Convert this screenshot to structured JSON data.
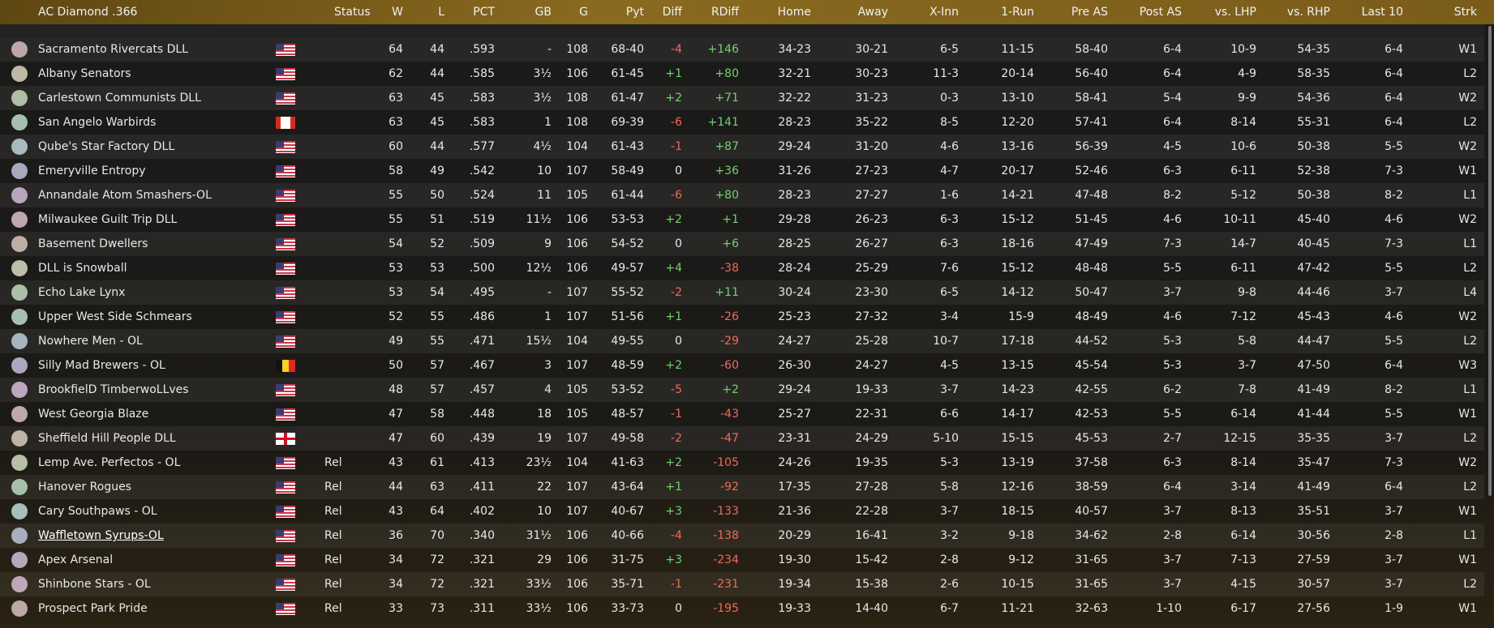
{
  "table": {
    "columns": [
      "AC Diamond .366",
      "Status",
      "W",
      "L",
      "PCT",
      "GB",
      "G",
      "Pyt",
      "Diff",
      "RDiff",
      "Home",
      "Away",
      "X-Inn",
      "1-Run",
      "Pre AS",
      "Post AS",
      "vs. LHP",
      "vs. RHP",
      "Last 10",
      "Strk"
    ],
    "rows": [
      {
        "team": "Sacramento Rivercats DLL",
        "flag": "us",
        "cells": [
          64,
          44,
          ".593",
          "-",
          108,
          "68-40",
          "-4",
          "+146",
          "34-23",
          "30-21",
          "6-5",
          "11-15",
          "58-40",
          "6-4",
          "10-9",
          "54-35",
          "6-4",
          "W1"
        ]
      },
      {
        "team": "Albany Senators",
        "flag": "us",
        "cells": [
          62,
          44,
          ".585",
          "3½",
          106,
          "61-45",
          "+1",
          "+80",
          "32-21",
          "30-23",
          "11-3",
          "20-14",
          "56-40",
          "6-4",
          "4-9",
          "58-35",
          "6-4",
          "L2"
        ]
      },
      {
        "team": "Carlestown Communists DLL",
        "flag": "us",
        "cells": [
          63,
          45,
          ".583",
          "3½",
          108,
          "61-47",
          "+2",
          "+71",
          "32-22",
          "31-23",
          "0-3",
          "13-10",
          "58-41",
          "5-4",
          "9-9",
          "54-36",
          "6-4",
          "W2"
        ]
      },
      {
        "team": "San Angelo Warbirds",
        "flag": "ca",
        "cells": [
          63,
          45,
          ".583",
          "1",
          108,
          "69-39",
          "-6",
          "+141",
          "28-23",
          "35-22",
          "8-5",
          "12-20",
          "57-41",
          "6-4",
          "8-14",
          "55-31",
          "6-4",
          "L2"
        ]
      },
      {
        "team": "Qube's Star Factory DLL",
        "flag": "us",
        "cells": [
          60,
          44,
          ".577",
          "4½",
          104,
          "61-43",
          "-1",
          "+87",
          "29-24",
          "31-20",
          "4-6",
          "13-16",
          "56-39",
          "4-5",
          "10-6",
          "50-38",
          "5-5",
          "W2"
        ]
      },
      {
        "team": "Emeryville Entropy",
        "flag": "us",
        "cells": [
          58,
          49,
          ".542",
          "10",
          107,
          "58-49",
          "0",
          "+36",
          "31-26",
          "27-23",
          "4-7",
          "20-17",
          "52-46",
          "6-3",
          "6-11",
          "52-38",
          "7-3",
          "W1"
        ]
      },
      {
        "team": "Annandale Atom Smashers-OL",
        "flag": "us",
        "cells": [
          55,
          50,
          ".524",
          "11",
          105,
          "61-44",
          "-6",
          "+80",
          "28-23",
          "27-27",
          "1-6",
          "14-21",
          "47-48",
          "8-2",
          "5-12",
          "50-38",
          "8-2",
          "L1"
        ]
      },
      {
        "team": "Milwaukee Guilt Trip DLL",
        "flag": "us",
        "cells": [
          55,
          51,
          ".519",
          "11½",
          106,
          "53-53",
          "+2",
          "+1",
          "29-28",
          "26-23",
          "6-3",
          "15-12",
          "51-45",
          "4-6",
          "10-11",
          "45-40",
          "4-6",
          "W2"
        ]
      },
      {
        "team": "Basement Dwellers",
        "flag": "us",
        "cells": [
          54,
          52,
          ".509",
          "9",
          106,
          "54-52",
          "0",
          "+6",
          "28-25",
          "26-27",
          "6-3",
          "18-16",
          "47-49",
          "7-3",
          "14-7",
          "40-45",
          "7-3",
          "L1"
        ]
      },
      {
        "team": "DLL is Snowball",
        "flag": "us",
        "cells": [
          53,
          53,
          ".500",
          "12½",
          106,
          "49-57",
          "+4",
          "-38",
          "28-24",
          "25-29",
          "7-6",
          "15-12",
          "48-48",
          "5-5",
          "6-11",
          "47-42",
          "5-5",
          "L2"
        ]
      },
      {
        "team": "Echo Lake Lynx",
        "flag": "us",
        "cells": [
          53,
          54,
          ".495",
          "-",
          107,
          "55-52",
          "-2",
          "+11",
          "30-24",
          "23-30",
          "6-5",
          "14-12",
          "50-47",
          "3-7",
          "9-8",
          "44-46",
          "3-7",
          "L4"
        ]
      },
      {
        "team": "Upper West Side Schmears",
        "flag": "us",
        "cells": [
          52,
          55,
          ".486",
          "1",
          107,
          "51-56",
          "+1",
          "-26",
          "25-23",
          "27-32",
          "3-4",
          "15-9",
          "48-49",
          "4-6",
          "7-12",
          "45-43",
          "4-6",
          "W2"
        ]
      },
      {
        "team": "Nowhere Men - OL",
        "flag": "us",
        "cells": [
          49,
          55,
          ".471",
          "15½",
          104,
          "49-55",
          "0",
          "-29",
          "24-27",
          "25-28",
          "10-7",
          "17-18",
          "44-52",
          "5-3",
          "5-8",
          "44-47",
          "5-5",
          "L2"
        ]
      },
      {
        "team": "Silly Mad Brewers - OL",
        "flag": "be",
        "cells": [
          50,
          57,
          ".467",
          "3",
          107,
          "48-59",
          "+2",
          "-60",
          "26-30",
          "24-27",
          "4-5",
          "13-15",
          "45-54",
          "5-3",
          "3-7",
          "47-50",
          "6-4",
          "W3"
        ]
      },
      {
        "team": "BrookfielD TimberwoLLves",
        "flag": "us",
        "cells": [
          48,
          57,
          ".457",
          "4",
          105,
          "53-52",
          "-5",
          "+2",
          "29-24",
          "19-33",
          "3-7",
          "14-23",
          "42-55",
          "6-2",
          "7-8",
          "41-49",
          "8-2",
          "L1"
        ]
      },
      {
        "team": "West Georgia Blaze",
        "flag": "us",
        "cells": [
          47,
          58,
          ".448",
          "18",
          105,
          "48-57",
          "-1",
          "-43",
          "25-27",
          "22-31",
          "6-6",
          "14-17",
          "42-53",
          "5-5",
          "6-14",
          "41-44",
          "5-5",
          "W1"
        ]
      },
      {
        "team": "Sheffield Hill People DLL",
        "flag": "en",
        "cells": [
          47,
          60,
          ".439",
          "19",
          107,
          "49-58",
          "-2",
          "-47",
          "23-31",
          "24-29",
          "5-10",
          "15-15",
          "45-53",
          "2-7",
          "12-15",
          "35-35",
          "3-7",
          "L2"
        ]
      },
      {
        "team": "Lemp Ave. Perfectos - OL",
        "flag": "us",
        "status": "Rel",
        "cells": [
          43,
          61,
          ".413",
          "23½",
          104,
          "41-63",
          "+2",
          "-105",
          "24-26",
          "19-35",
          "5-3",
          "13-19",
          "37-58",
          "6-3",
          "8-14",
          "35-47",
          "7-3",
          "W2"
        ]
      },
      {
        "team": "Hanover Rogues",
        "flag": "us",
        "status": "Rel",
        "cells": [
          44,
          63,
          ".411",
          "22",
          107,
          "43-64",
          "+1",
          "-92",
          "17-35",
          "27-28",
          "5-8",
          "12-16",
          "38-59",
          "6-4",
          "3-14",
          "41-49",
          "6-4",
          "L2"
        ]
      },
      {
        "team": "Cary Southpaws - OL",
        "flag": "us",
        "status": "Rel",
        "cells": [
          43,
          64,
          ".402",
          "10",
          107,
          "40-67",
          "+3",
          "-133",
          "21-36",
          "22-28",
          "3-7",
          "18-15",
          "40-57",
          "3-7",
          "8-13",
          "35-51",
          "3-7",
          "W1"
        ]
      },
      {
        "team": "Waffletown Syrups-OL",
        "flag": "us",
        "status": "Rel",
        "selected": true,
        "cells": [
          36,
          70,
          ".340",
          "31½",
          106,
          "40-66",
          "-4",
          "-138",
          "20-29",
          "16-41",
          "3-2",
          "9-18",
          "34-62",
          "2-8",
          "6-14",
          "30-56",
          "2-8",
          "L1"
        ]
      },
      {
        "team": "Apex Arsenal",
        "flag": "us",
        "status": "Rel",
        "cells": [
          34,
          72,
          ".321",
          "29",
          106,
          "31-75",
          "+3",
          "-234",
          "19-30",
          "15-42",
          "2-8",
          "9-12",
          "31-65",
          "3-7",
          "7-13",
          "27-59",
          "3-7",
          "W1"
        ]
      },
      {
        "team": "Shinbone Stars - OL",
        "flag": "us",
        "status": "Rel",
        "cells": [
          34,
          72,
          ".321",
          "33½",
          106,
          "35-71",
          "-1",
          "-231",
          "19-34",
          "15-38",
          "2-6",
          "10-15",
          "31-65",
          "3-7",
          "4-15",
          "30-57",
          "3-7",
          "L2"
        ]
      },
      {
        "team": "Prospect Park Pride",
        "flag": "us",
        "status": "Rel",
        "cells": [
          33,
          73,
          ".311",
          "33½",
          106,
          "33-73",
          "0",
          "-195",
          "19-33",
          "14-40",
          "6-7",
          "11-21",
          "32-63",
          "1-10",
          "6-17",
          "27-56",
          "1-9",
          "W1"
        ]
      }
    ]
  }
}
